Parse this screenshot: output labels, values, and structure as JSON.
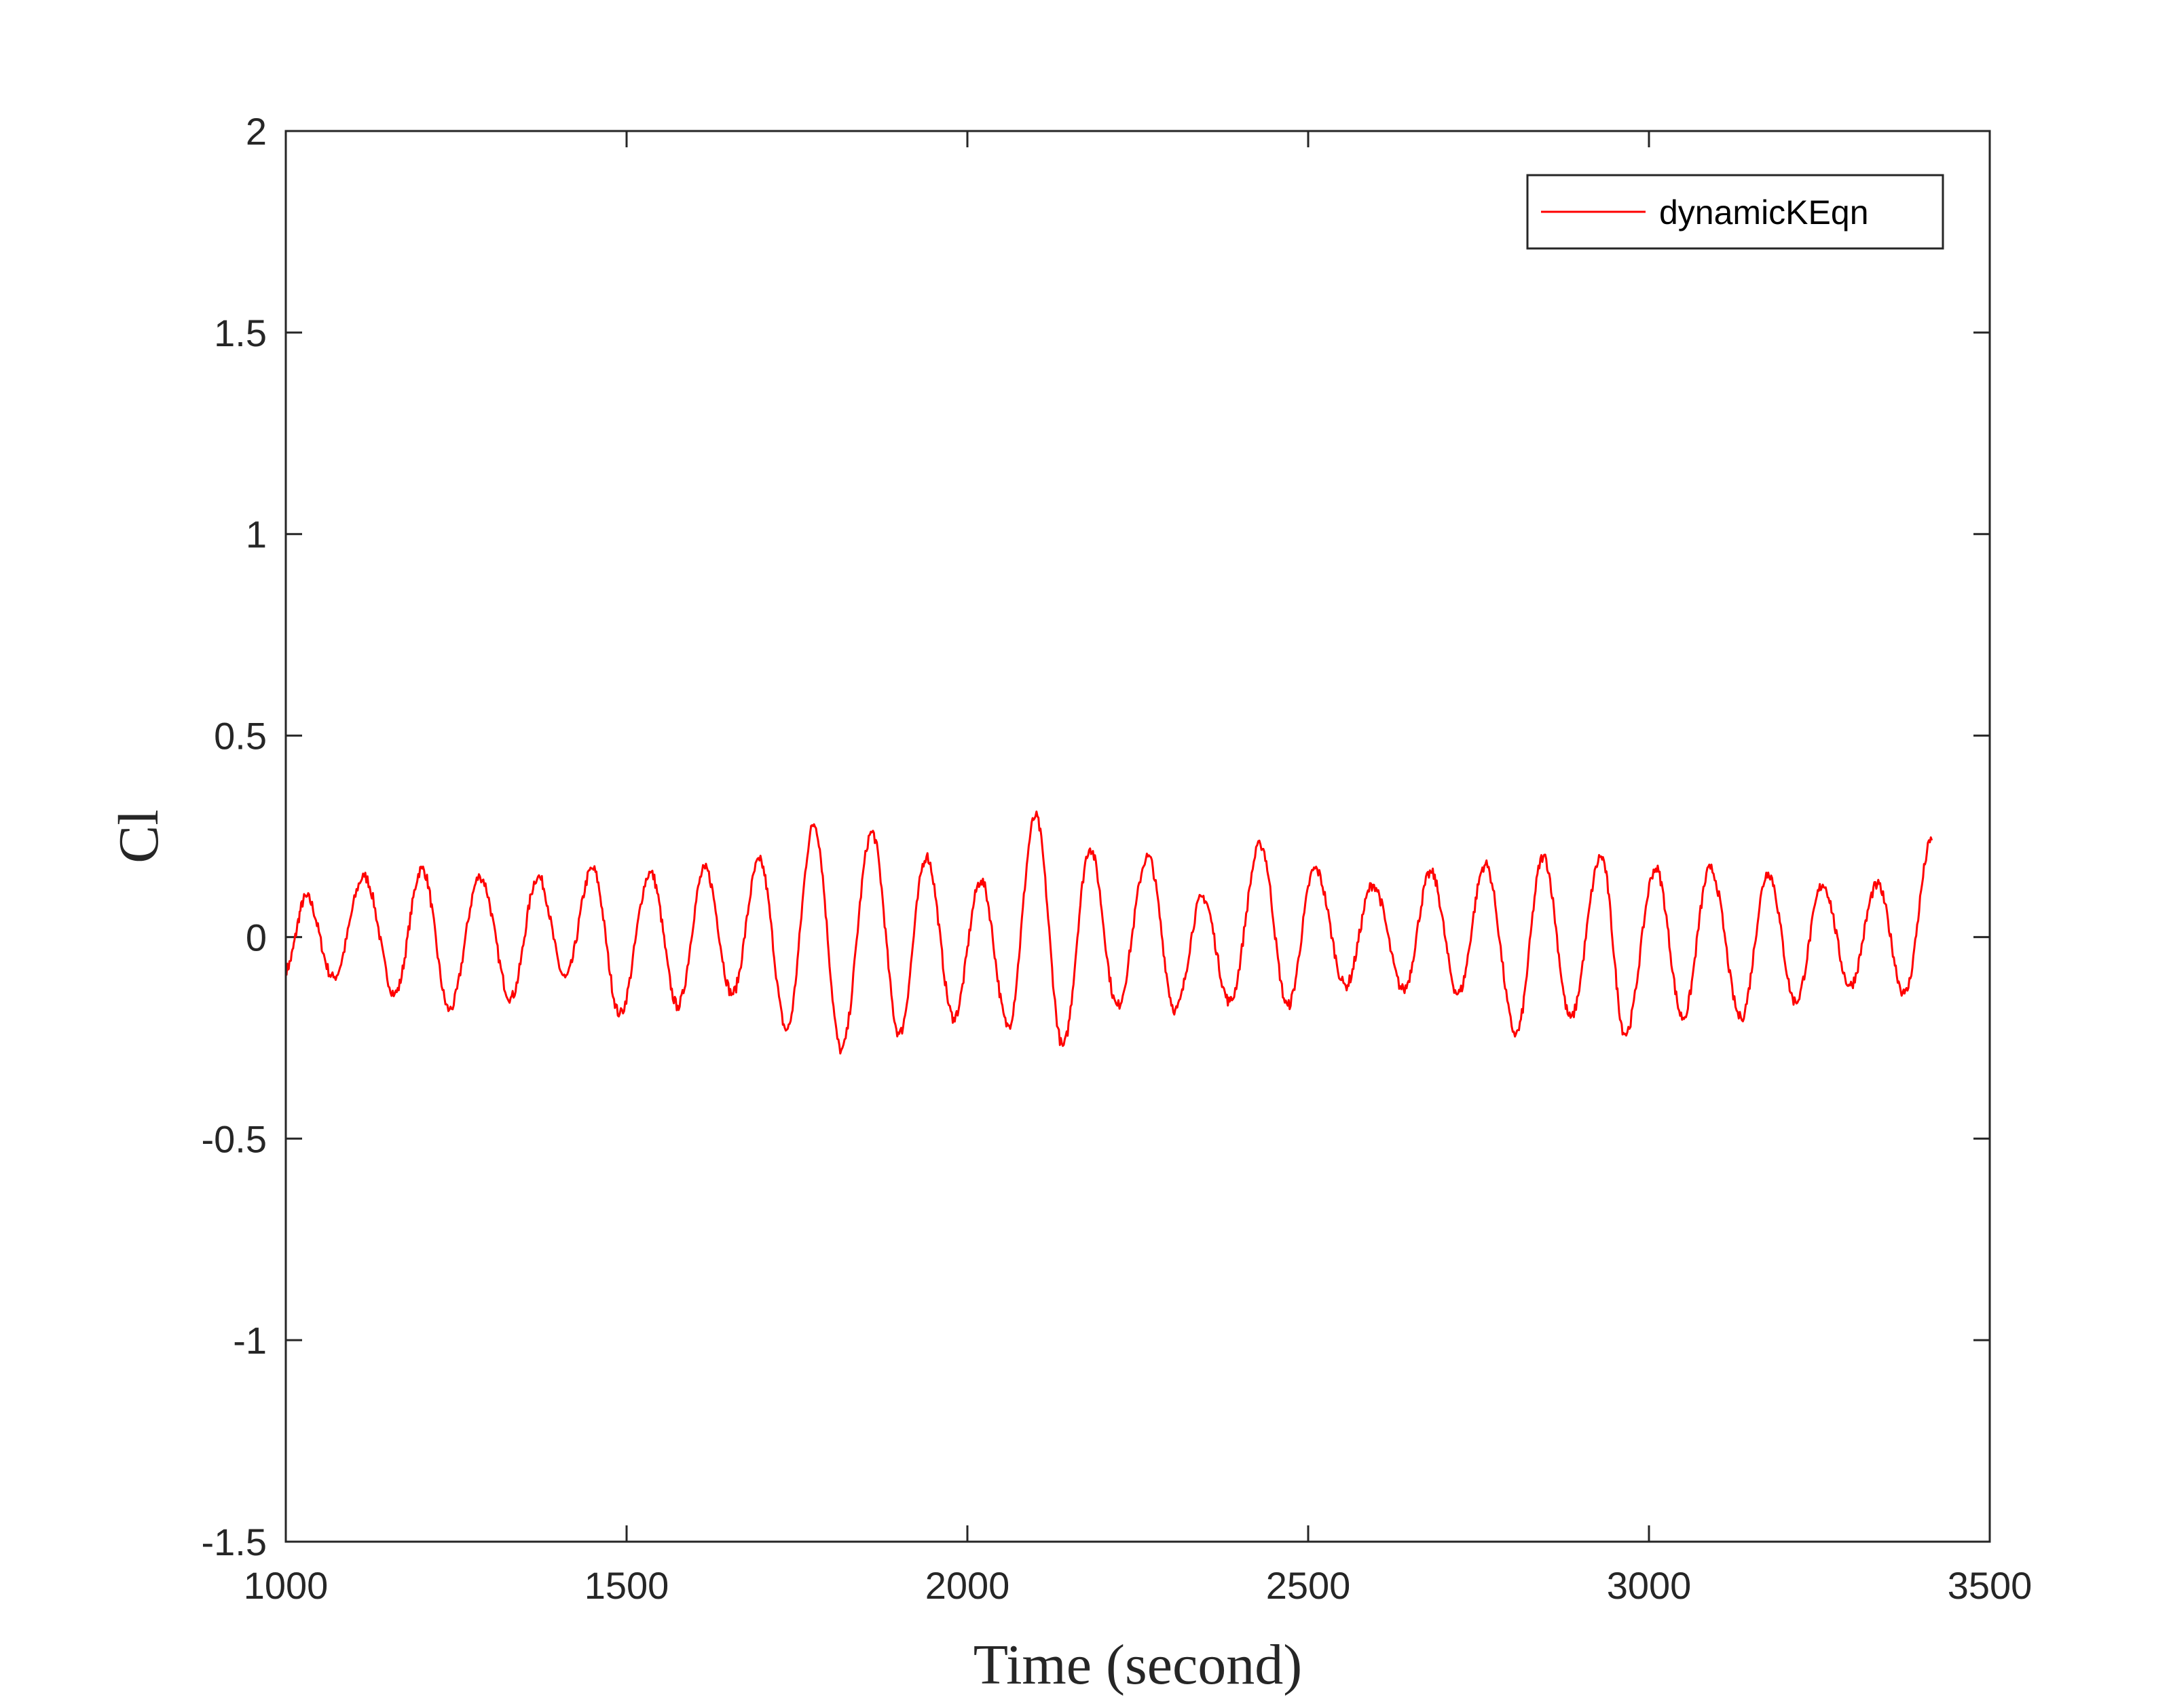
{
  "chart_data": {
    "type": "line",
    "xlabel": "Time (second)",
    "ylabel": "Cl",
    "xlim": [
      1000,
      3500
    ],
    "ylim": [
      -1.5,
      2
    ],
    "xticks": [
      1000,
      1500,
      2000,
      2500,
      3000,
      3500
    ],
    "yticks": [
      -1.5,
      -1,
      -0.5,
      0,
      0.5,
      1,
      1.5,
      2
    ],
    "xtick_labels": [
      "1000",
      "1500",
      "2000",
      "2500",
      "3000",
      "3500"
    ],
    "ytick_labels": [
      "-1.5",
      "-1",
      "-0.5",
      "0",
      "0.5",
      "1",
      "1.5",
      "2"
    ],
    "grid": false,
    "legend_position": "top-right",
    "series": [
      {
        "name": "dynamicKEqn",
        "color": "#ff0000",
        "x": [
          1000,
          1030,
          1070,
          1115,
          1160,
          1200,
          1240,
          1285,
          1330,
          1370,
          1410,
          1450,
          1490,
          1535,
          1575,
          1615,
          1655,
          1695,
          1735,
          1775,
          1815,
          1860,
          1900,
          1940,
          1980,
          2020,
          2060,
          2100,
          2140,
          2180,
          2220,
          2265,
          2305,
          2345,
          2385,
          2430,
          2470,
          2510,
          2555,
          2595,
          2640,
          2680,
          2720,
          2760,
          2805,
          2845,
          2885,
          2930,
          2965,
          3010,
          3050,
          3090,
          3135,
          3175,
          3215,
          3255,
          3295,
          3335,
          3375,
          3415
        ],
        "y": [
          -0.08,
          0.1,
          -0.1,
          0.15,
          -0.14,
          0.17,
          -0.18,
          0.15,
          -0.15,
          0.15,
          -0.1,
          0.17,
          -0.19,
          0.16,
          -0.17,
          0.17,
          -0.14,
          0.19,
          -0.23,
          0.28,
          -0.28,
          0.26,
          -0.24,
          0.2,
          -0.2,
          0.14,
          -0.22,
          0.3,
          -0.27,
          0.22,
          -0.17,
          0.2,
          -0.18,
          0.1,
          -0.16,
          0.23,
          -0.17,
          0.17,
          -0.12,
          0.13,
          -0.13,
          0.16,
          -0.14,
          0.18,
          -0.24,
          0.2,
          -0.2,
          0.2,
          -0.24,
          0.17,
          -0.2,
          0.17,
          -0.2,
          0.16,
          -0.16,
          0.13,
          -0.12,
          0.13,
          -0.14,
          0.24
        ]
      }
    ]
  }
}
